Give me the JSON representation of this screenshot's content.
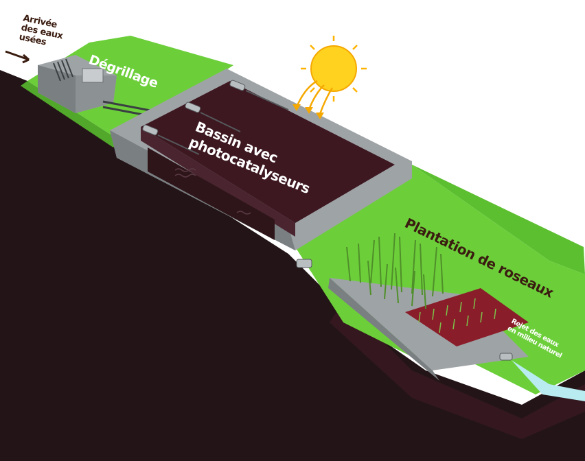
{
  "labels": {
    "inflow": [
      "Arrivée",
      "des eaux",
      "usées"
    ],
    "screening": "Dégrillage",
    "basin": [
      "Bassin avec",
      "photocatalyseurs"
    ],
    "reeds": "Plantation de roseaux",
    "discharge": [
      "Rejet des eaux",
      "en milieu naturel"
    ]
  },
  "colors": {
    "soil": "#231517",
    "grass": "#6ccf3a",
    "grass_shadow": "#52a82b",
    "concrete": "#9ea3a6",
    "concrete_dark": "#7a7f82",
    "water": "#3d1821",
    "sun": "#ffd21f",
    "ray": "#f5a800",
    "reed": "#4f8f2a",
    "red_bed": "#8a1d2a",
    "label_dark": "#3a1c10",
    "label_light": "#ffffff",
    "outflow_water": "#b8ecf0"
  },
  "icons": [
    "sun-icon",
    "grille-icon",
    "lamp-icon",
    "pipe-icon",
    "reed-icon"
  ]
}
